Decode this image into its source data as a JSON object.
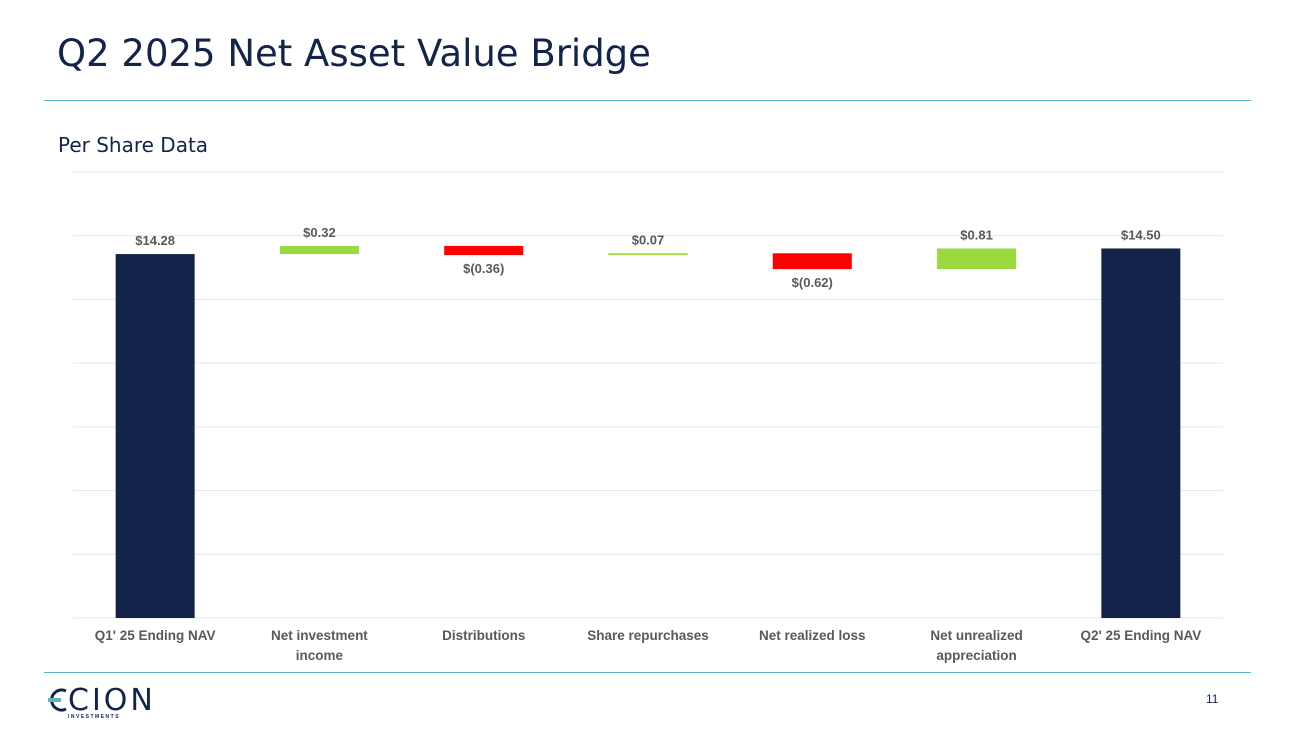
{
  "slide": {
    "title": "Q2 2025 Net Asset Value Bridge",
    "subtitle": "Per Share Data",
    "page_number": "11"
  },
  "logo": {
    "name": "CION",
    "tagline": "INVESTMENTS"
  },
  "colors": {
    "total": "#13234a",
    "increase": "#9bd940",
    "decrease": "#ff0000",
    "accent_line": "#58b4c6",
    "text": "#13234a",
    "label": "#595959",
    "grid": "#e6e6e6"
  },
  "chart_data": {
    "type": "waterfall",
    "title": "",
    "xlabel": "",
    "ylabel": "",
    "ylim": [
      0,
      17.5
    ],
    "grid": true,
    "categories": [
      [
        "Q1' 25 Ending NAV"
      ],
      [
        "Net investment",
        "income"
      ],
      [
        "Distributions"
      ],
      [
        "Share repurchases"
      ],
      [
        "Net realized loss"
      ],
      [
        "Net unrealized",
        "appreciation"
      ],
      [
        "Q2' 25 Ending NAV"
      ]
    ],
    "bars": [
      {
        "kind": "total",
        "value": 14.28,
        "label": "$14.28"
      },
      {
        "kind": "increase",
        "value": 0.32,
        "label": "$0.32"
      },
      {
        "kind": "decrease",
        "value": -0.36,
        "label": "$(0.36)"
      },
      {
        "kind": "increase",
        "value": 0.07,
        "label": "$0.07"
      },
      {
        "kind": "decrease",
        "value": -0.62,
        "label": "$(0.62)"
      },
      {
        "kind": "increase",
        "value": 0.81,
        "label": "$0.81"
      },
      {
        "kind": "total",
        "value": 14.5,
        "label": "$14.50"
      }
    ]
  }
}
